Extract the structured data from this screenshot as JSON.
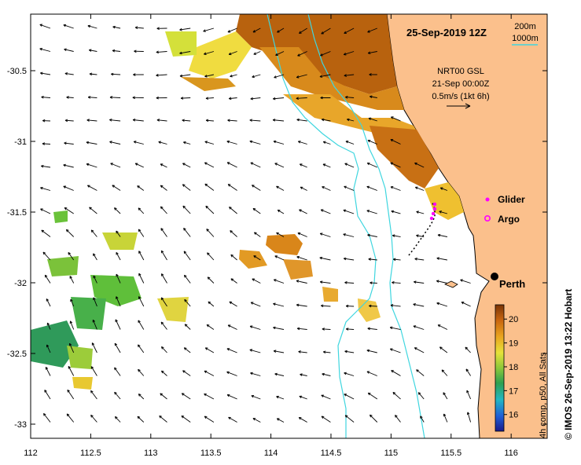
{
  "map": {
    "title": "25-Sep-2019 12Z",
    "contour_legend": [
      "200m",
      "1000m"
    ],
    "current_info": [
      "NRT00 GSL",
      "21-Sep 00:00Z",
      "0.5m/s (1kt 6h)"
    ],
    "markers": {
      "glider_label": "Glider",
      "argo_label": "Argo"
    },
    "city": "Perth",
    "colorbar": {
      "label": "4h comp, p50, All Sats",
      "ticks": [
        "20",
        "19",
        "18",
        "17",
        "16"
      ],
      "range": [
        15.3,
        20.6
      ]
    },
    "credit": "© IMOS 26-Sep-2019 13:22 Hobart",
    "x_ticks": [
      "112",
      "112.5",
      "113",
      "113.5",
      "114",
      "114.5",
      "115",
      "115.5",
      "116"
    ],
    "y_ticks": [
      "-30.5",
      "-31",
      "-31.5",
      "-32",
      "-32.5",
      "-33"
    ],
    "lon_range": [
      112,
      116.3
    ],
    "lat_range": [
      -30.1,
      -33.1
    ],
    "colors": {
      "land": "#fbc08c",
      "isobath": "#3fd6df",
      "glider": "#ff00ff",
      "argo": "#ff00ff",
      "warm": "#c06a10",
      "cool": "#36a63c"
    }
  }
}
